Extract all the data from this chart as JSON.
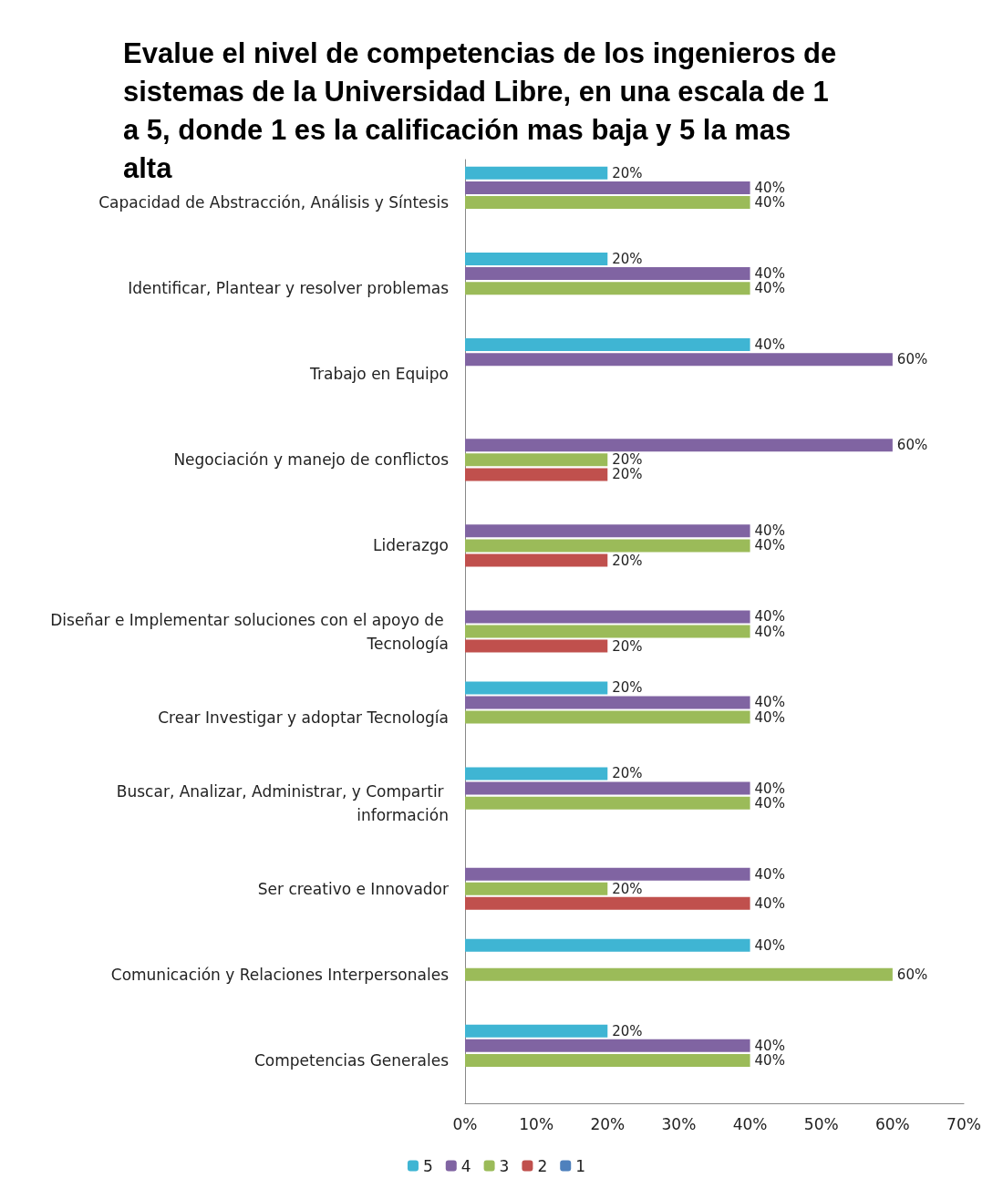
{
  "chart_data": {
    "type": "bar",
    "orientation": "horizontal",
    "title": "Evalue el nivel de competencias de los ingenieros de sistemas de la Universidad Libre, en una escala de 1 a 5, donde 1 es la calificación mas baja y 5 la mas alta",
    "categories": [
      "Capacidad de Abstracción, Análisis y Síntesis",
      "Identificar, Plantear y resolver problemas",
      "Trabajo en Equipo",
      "Negociación y manejo de conflictos",
      "Liderazgo",
      "Diseñar e Implementar soluciones con el apoyo de Tecnología",
      "Crear Investigar y adoptar Tecnología",
      "Buscar, Analizar, Administrar, y Compartir información",
      "Ser creativo e Innovador",
      "Comunicación y Relaciones Interpersonales",
      "Competencias Generales"
    ],
    "series": [
      {
        "name": "5",
        "color": "#3fb5d3",
        "values": [
          20,
          20,
          40,
          null,
          null,
          null,
          20,
          20,
          null,
          40,
          20
        ],
        "value_labels": [
          "20%",
          "20%",
          "40%",
          null,
          null,
          null,
          "20%",
          "20%",
          null,
          "40%",
          "20%"
        ]
      },
      {
        "name": "4",
        "color": "#8064a2",
        "values": [
          40,
          40,
          60,
          60,
          40,
          40,
          40,
          40,
          40,
          null,
          40
        ],
        "value_labels": [
          "40%",
          "40%",
          "60%",
          "60%",
          "40%",
          "40%",
          "40%",
          "40%",
          "40%",
          null,
          "40%"
        ]
      },
      {
        "name": "3",
        "color": "#9bbb59",
        "values": [
          40,
          40,
          null,
          20,
          40,
          40,
          40,
          40,
          20,
          60,
          40
        ],
        "value_labels": [
          "40%",
          "40%",
          null,
          "20%",
          "40%",
          "40%",
          "40%",
          "40%",
          "20%",
          "60%",
          "40%"
        ]
      },
      {
        "name": "2",
        "color": "#c0504d",
        "values": [
          null,
          null,
          null,
          20,
          20,
          20,
          null,
          null,
          40,
          null,
          null
        ],
        "value_labels": [
          null,
          null,
          null,
          "20%",
          "20%",
          "20%",
          null,
          null,
          "40%",
          null,
          null
        ]
      },
      {
        "name": "1",
        "color": "#4f81bd",
        "values": [
          null,
          null,
          null,
          null,
          null,
          null,
          null,
          null,
          null,
          null,
          null
        ]
      }
    ],
    "xlim": [
      0,
      70
    ],
    "xticks": [
      {
        "value": 0,
        "label": "0%"
      },
      {
        "value": 10,
        "label": "10%"
      },
      {
        "value": 20,
        "label": "20%"
      },
      {
        "value": 30,
        "label": "30%"
      },
      {
        "value": 40,
        "label": "40%"
      },
      {
        "value": 50,
        "label": "50%"
      },
      {
        "value": 60,
        "label": "60%"
      },
      {
        "value": 70,
        "label": "70%"
      }
    ],
    "grid": false,
    "legend": "bottom"
  }
}
